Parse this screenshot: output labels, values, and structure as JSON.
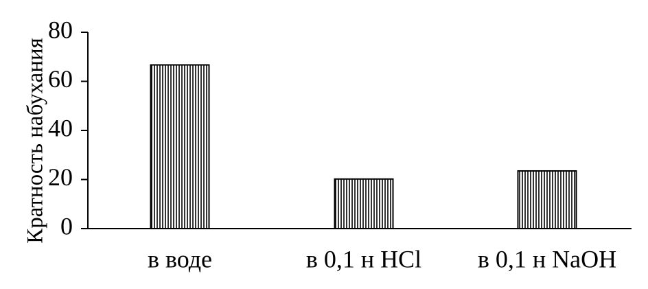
{
  "chart_data": {
    "type": "bar",
    "categories": [
      "в воде",
      "в 0,1 н HCl",
      "в 0,1 н NaOH"
    ],
    "values": [
      66.7,
      20.2,
      23.5
    ],
    "title": "",
    "xlabel": "",
    "ylabel": "Кратность набухания",
    "ylim": [
      0,
      80
    ],
    "yticks": [
      0,
      20,
      40,
      60,
      80
    ],
    "grid": false,
    "legend": "none",
    "bar_fill": "vertical-hatch",
    "colors": {
      "bar_stroke": "#000000",
      "bar_hatch": "#000000",
      "bar_background": "#ffffff",
      "axis": "#000000"
    }
  }
}
